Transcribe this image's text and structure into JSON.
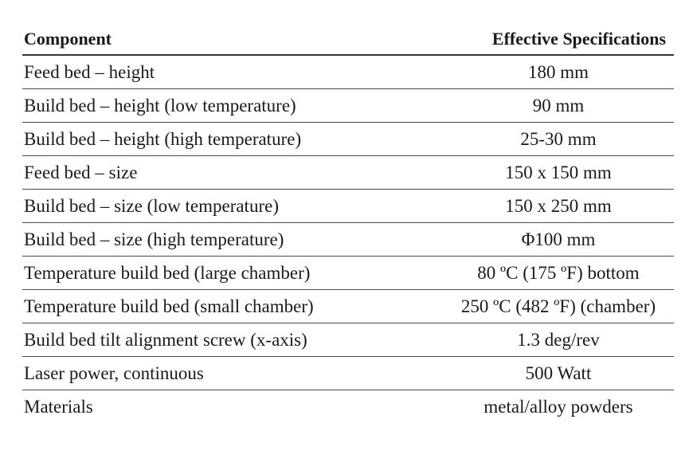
{
  "table": {
    "headers": {
      "component": "Component",
      "specification": "Effective Specifications"
    },
    "rows": [
      {
        "component": "Feed bed – height",
        "spec": "180 mm"
      },
      {
        "component": "Build bed – height (low temperature)",
        "spec": "90 mm"
      },
      {
        "component": "Build bed – height (high temperature)",
        "spec": "25-30 mm"
      },
      {
        "component": "Feed bed – size",
        "spec": "150 x 150 mm"
      },
      {
        "component": "Build bed – size (low temperature)",
        "spec": "150 x 250 mm"
      },
      {
        "component": "Build bed – size (high temperature)",
        "spec": "Φ100 mm"
      },
      {
        "component": "Temperature build bed (large chamber)",
        "spec": "80 ºC (175 ºF) bottom"
      },
      {
        "component": "Temperature build bed (small chamber)",
        "spec": "250 ºC (482 ºF) (chamber)"
      },
      {
        "component": "Build bed tilt alignment screw (x-axis)",
        "spec": "1.3 deg/rev"
      },
      {
        "component": "Laser power, continuous",
        "spec": "500 Watt"
      },
      {
        "component": "Materials",
        "spec": "metal/alloy powders"
      }
    ]
  }
}
